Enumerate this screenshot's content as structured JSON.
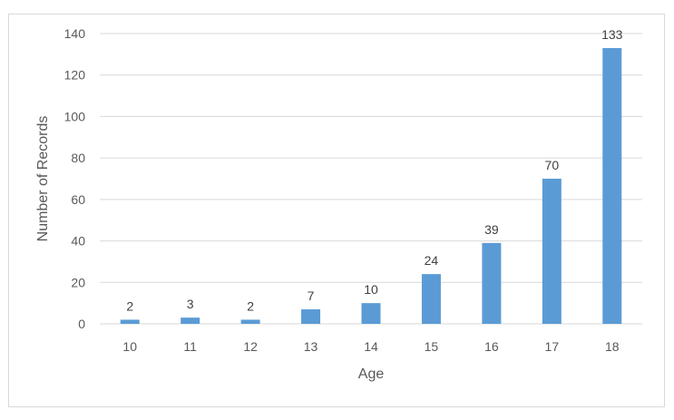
{
  "chart_data": {
    "type": "bar",
    "categories": [
      "10",
      "11",
      "12",
      "13",
      "14",
      "15",
      "16",
      "17",
      "18"
    ],
    "values": [
      2,
      3,
      2,
      7,
      10,
      24,
      39,
      70,
      133
    ],
    "xlabel": "Age",
    "ylabel": "Number of Records",
    "ylim": [
      0,
      140
    ],
    "yticks": [
      0,
      20,
      40,
      60,
      80,
      100,
      120,
      140
    ],
    "grid": true,
    "data_labels": true,
    "bar_color": "#5b9bd5",
    "grid_color": "#d9d9d9"
  }
}
